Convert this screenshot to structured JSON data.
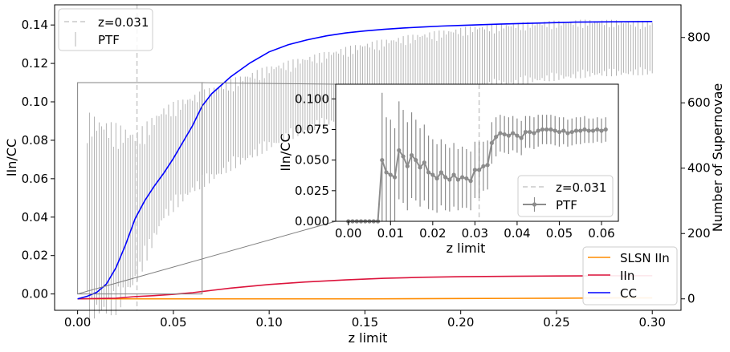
{
  "chart_data": [
    {
      "panel": "main",
      "type": "line",
      "xlabel": "z limit",
      "ylabel": "IIn/CC",
      "y2label": "Number of Supernovae",
      "xlim": [
        -0.012,
        0.315
      ],
      "ylim": [
        -0.0085,
        0.1505
      ],
      "y2lim": [
        -35,
        900
      ],
      "xticks": [
        0.0,
        0.05,
        0.1,
        0.15,
        0.2,
        0.25,
        0.3
      ],
      "xtick_labels": [
        "0.00",
        "0.05",
        "0.10",
        "0.15",
        "0.20",
        "0.25",
        "0.30"
      ],
      "yticks": [
        0.0,
        0.02,
        0.04,
        0.06,
        0.08,
        0.1,
        0.12,
        0.14
      ],
      "ytick_labels": [
        "0.00",
        "0.02",
        "0.04",
        "0.06",
        "0.08",
        "0.10",
        "0.12",
        "0.14"
      ],
      "y2ticks": [
        0,
        200,
        400,
        600,
        800
      ],
      "y2tick_labels": [
        "0",
        "200",
        "400",
        "600",
        "800"
      ],
      "vline": {
        "x": 0.031,
        "label": "z=0.031"
      },
      "zoom_box": {
        "x": [
          0.0,
          0.065
        ],
        "y": [
          0.0,
          0.11
        ]
      },
      "legend_left": {
        "placement": "upper-left",
        "entries": [
          "z=0.031",
          "PTF"
        ]
      },
      "legend_right": {
        "placement": "lower-right",
        "entries": [
          "SLSN IIn",
          "IIn",
          "CC"
        ]
      },
      "ptf_ratio": {
        "name": "PTF",
        "x": [
          0.005,
          0.02,
          0.031,
          0.045,
          0.06,
          0.08,
          0.1,
          0.12,
          0.15,
          0.18,
          0.21,
          0.24,
          0.27,
          0.3
        ],
        "y": [
          0.04,
          0.039,
          0.045,
          0.068,
          0.078,
          0.088,
          0.097,
          0.104,
          0.112,
          0.118,
          0.123,
          0.126,
          0.128,
          0.128
        ],
        "err": [
          0.055,
          0.05,
          0.04,
          0.03,
          0.026,
          0.024,
          0.022,
          0.02,
          0.019,
          0.018,
          0.017,
          0.016,
          0.015,
          0.014
        ]
      },
      "counts": [
        {
          "name": "CC",
          "color": "#0000ff",
          "x": [
            0.0,
            0.005,
            0.01,
            0.015,
            0.02,
            0.025,
            0.03,
            0.035,
            0.04,
            0.045,
            0.05,
            0.055,
            0.06,
            0.065,
            0.07,
            0.08,
            0.09,
            0.1,
            0.11,
            0.12,
            0.13,
            0.14,
            0.15,
            0.16,
            0.17,
            0.18,
            0.19,
            0.2,
            0.22,
            0.24,
            0.26,
            0.28,
            0.3
          ],
          "values": [
            0,
            8,
            20,
            45,
            95,
            165,
            245,
            300,
            345,
            385,
            430,
            480,
            530,
            590,
            628,
            680,
            722,
            756,
            778,
            793,
            805,
            814,
            820,
            825,
            829,
            832,
            835,
            837,
            841,
            844,
            847,
            848,
            849
          ]
        },
        {
          "name": "IIn",
          "color": "#dc143c",
          "x": [
            0.0,
            0.01,
            0.02,
            0.03,
            0.04,
            0.05,
            0.06,
            0.07,
            0.08,
            0.1,
            0.12,
            0.14,
            0.16,
            0.18,
            0.2,
            0.25,
            0.3
          ],
          "values": [
            0,
            1,
            2,
            7,
            10,
            14,
            19,
            26,
            33,
            44,
            52,
            58,
            63,
            66,
            68,
            70,
            71
          ]
        },
        {
          "name": "SLSN IIn",
          "color": "#ff8c00",
          "x": [
            0.0,
            0.1,
            0.15,
            0.2,
            0.25,
            0.28,
            0.3
          ],
          "values": [
            0,
            0,
            0,
            1,
            2,
            3,
            3
          ]
        }
      ]
    },
    {
      "panel": "inset",
      "type": "line",
      "xlabel": "z limit",
      "ylabel": "IIn/CC",
      "xlim": [
        -0.003,
        0.064
      ],
      "ylim": [
        0.0,
        0.112
      ],
      "xticks": [
        0.0,
        0.01,
        0.02,
        0.03,
        0.04,
        0.05,
        0.06
      ],
      "xtick_labels": [
        "0.00",
        "0.01",
        "0.02",
        "0.03",
        "0.04",
        "0.05",
        "0.06"
      ],
      "yticks": [
        0.0,
        0.025,
        0.05,
        0.075,
        0.1
      ],
      "ytick_labels": [
        "0.000",
        "0.025",
        "0.050",
        "0.075",
        "0.100"
      ],
      "vline": {
        "x": 0.031,
        "label": "z=0.031"
      },
      "legend": {
        "placement": "lower-right",
        "entries": [
          "z=0.031",
          "PTF"
        ]
      },
      "series": [
        {
          "name": "PTF",
          "color": "#8c8c8c",
          "x": [
            0.0,
            0.001,
            0.002,
            0.003,
            0.004,
            0.005,
            0.006,
            0.007,
            0.008,
            0.009,
            0.01,
            0.011,
            0.012,
            0.013,
            0.014,
            0.015,
            0.016,
            0.017,
            0.018,
            0.019,
            0.02,
            0.021,
            0.022,
            0.023,
            0.024,
            0.025,
            0.026,
            0.027,
            0.028,
            0.029,
            0.03,
            0.031,
            0.032,
            0.033,
            0.034,
            0.035,
            0.036,
            0.037,
            0.038,
            0.039,
            0.04,
            0.041,
            0.042,
            0.043,
            0.044,
            0.045,
            0.046,
            0.047,
            0.048,
            0.049,
            0.05,
            0.051,
            0.052,
            0.053,
            0.054,
            0.055,
            0.056,
            0.057,
            0.058,
            0.059,
            0.06,
            0.061
          ],
          "values": [
            0.0,
            0.0,
            0.0,
            0.0,
            0.0,
            0.0,
            0.0,
            0.0,
            0.05,
            0.04,
            0.038,
            0.036,
            0.058,
            0.053,
            0.045,
            0.054,
            0.05,
            0.044,
            0.048,
            0.04,
            0.038,
            0.035,
            0.04,
            0.036,
            0.034,
            0.038,
            0.034,
            0.036,
            0.035,
            0.033,
            0.042,
            0.042,
            0.045,
            0.046,
            0.064,
            0.069,
            0.072,
            0.071,
            0.07,
            0.072,
            0.07,
            0.068,
            0.073,
            0.073,
            0.072,
            0.074,
            0.075,
            0.075,
            0.075,
            0.074,
            0.073,
            0.074,
            0.072,
            0.073,
            0.074,
            0.074,
            0.075,
            0.074,
            0.074,
            0.075,
            0.074,
            0.075
          ],
          "err": [
            0.0,
            0.0,
            0.0,
            0.0,
            0.0,
            0.0,
            0.0,
            0.0,
            0.055,
            0.045,
            0.045,
            0.04,
            0.04,
            0.038,
            0.036,
            0.035,
            0.033,
            0.032,
            0.031,
            0.03,
            0.029,
            0.028,
            0.027,
            0.027,
            0.026,
            0.026,
            0.025,
            0.025,
            0.024,
            0.024,
            0.023,
            0.023,
            0.02,
            0.02,
            0.017,
            0.016,
            0.015,
            0.015,
            0.015,
            0.014,
            0.014,
            0.014,
            0.013,
            0.013,
            0.013,
            0.013,
            0.012,
            0.012,
            0.012,
            0.012,
            0.012,
            0.011,
            0.011,
            0.011,
            0.011,
            0.011,
            0.011,
            0.01,
            0.01,
            0.01,
            0.01,
            0.01
          ]
        }
      ]
    }
  ]
}
